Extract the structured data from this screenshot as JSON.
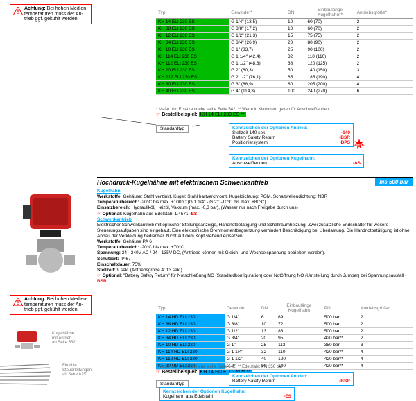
{
  "warn": {
    "title": "Achtung:",
    "text": "Bei hohen Medien-\ntemperaturen muss der An-\ntrieb ggf. gekühlt werden!"
  },
  "table1": {
    "headers": [
      "Typ",
      "Gewinde**",
      "DN",
      "Einbaulänge\nKugelhahn**",
      "Antriebsgröße*"
    ],
    "rows": [
      [
        "KH 14 ELI 230 ES",
        "G 1/4\" (13,5)",
        "10",
        "60 (70)",
        "2"
      ],
      [
        "KH 38 ELI 230 ES",
        "G 3/8\" (17,2)",
        "10",
        "60 (70)",
        "2"
      ],
      [
        "KH 12 ELI 230 ES",
        "G 1/2\" (21,3)",
        "15",
        "75 (75)",
        "2"
      ],
      [
        "KH 34 ELI 230 ES",
        "G 3/4\" (26,9)",
        "20",
        "80 (90)",
        "2"
      ],
      [
        "KH 10 ELI 230 ES",
        "G 1\" (33,7)",
        "25",
        "90 (100)",
        "2"
      ],
      [
        "KH 114 ELI 230 ES",
        "G 1 1/4\" (42,4)",
        "32",
        "110 (110)",
        "2"
      ],
      [
        "KH 112 ELI 230 ES",
        "G 1 1/2\" (48,3)",
        "38",
        "120 (125)",
        "2"
      ],
      [
        "KH 20 ELI 230 ES",
        "G 2\" (60,3)",
        "50",
        "140 (150)",
        "3"
      ],
      [
        "KH 212 ELI 230 ES",
        "G 2 1/2\" (76,1)",
        "65",
        "185 (190)",
        "4"
      ],
      [
        "KH 30 ELI 230 ES",
        "G 3\" (88,9)",
        "80",
        "205 (200)",
        "4"
      ],
      [
        "KH 40 ELI 230 ES",
        "G 4\" (114,3)",
        "100",
        "240 (270)",
        "6"
      ]
    ],
    "footnote": "* Maße und Ersatzantriebe siehe Seite 542, ** Werte in Klammern gelten für Anschweißenden",
    "bestell_label": "Bestellbeispiel:",
    "bestell_val": "KH 14 ELI 230 ES **",
    "std": "Standardtyp"
  },
  "opt1": {
    "title": "Kennzeichen der Optionen Antrieb:",
    "rows": [
      [
        "Stellzeit 140 sek.",
        "-140"
      ],
      [
        "Battery Safety Return",
        "-BSR"
      ],
      [
        "Positioniersystem",
        "-DPS"
      ]
    ],
    "burst": "NEU"
  },
  "opt1b": {
    "title": "Kennzeichen der Optionen Kugelhahn:",
    "rows": [
      [
        "Anschweißenden",
        "-AS"
      ]
    ]
  },
  "section": {
    "title": "Hochdruck-Kugelhähne mit elektrischem Schwenkantrieb",
    "bar": "bis 500 bar"
  },
  "desc": {
    "kugel": "Kugelhahn",
    "werk1": "Werkstoffe: Gehäuse: Stahl verzinkt, Kugel: Stahl hartverchromt, Kugeldichtung: POM, Schaltwellendichtung: NBR",
    "temp1": "Temperaturbereich: -20°C bis max. +100°C (G 1 1/4\" - G 2\": -10°C bis max. +80°C)",
    "eins": "Einsatzbereich: Hydrauliköl, Heizöl, Vakuum (max. -0,3 bar), (Wasser nur nach Freigabe durch uns)",
    "opt1": "Optional: Kugelhahn aus Edelstahl 1.4571 -ES",
    "schwenk": "Schwenkantrieb",
    "schwenktxt": "Elektrischer Schwenkantrieb mit optischer Stellungsanzeige, Handnotbetätigung und Schaltraumheizung. Zwei zusätzliche Endschalter für weitere Steuerungsaufgaben sind eingebaut. Eine elektronische Drehmomentbegrenzung verhindert Beschädigung bei Überlastung. Die Handnotbetätigung ist ohne Abbau der Verkleidung bedienbar. Nicht auf dem Kopf stehend einsetzen!",
    "werk2": "Werkstoffe: Gehäuse PA 6",
    "temp2": "Temperaturbereich: -20°C bis max. +70°C",
    "span": "Spannung: 24 - 240V AC / 24 - 135V DC, (Antriebe können mit Gleich- und Wechselspannung betrieben werden).",
    "schutz": "Schutzart: IP 67",
    "einsch": "Einschaltdauer: 75%",
    "stell": "Stellzeit: 9 sek. (Antriebsgröße 4: 13 sek.)",
    "opt2": "Optional: \"Battery Safety Return\" für Notschließung NC (Standardkonfiguration) oder Notöffnung NO (Umstellung durch Jumper) bei Spannungsausfall -BSR"
  },
  "table2": {
    "headers": [
      "Typ",
      "Gewinde",
      "DN",
      "Einbaulänge\nKugelhahn",
      "PN",
      "Antriebsgröße*"
    ],
    "rows": [
      [
        "KH 14 HD ELI 230",
        "G 1/4\"",
        "6",
        "69",
        "500 bar",
        "2"
      ],
      [
        "KH 38 HD ELI 230",
        "G 3/8\"",
        "10",
        "72",
        "500 bar",
        "2"
      ],
      [
        "KH 12 HD ELI 230",
        "G 1/2\"",
        "13",
        "83",
        "500 bar",
        "2"
      ],
      [
        "KH 34 HD ELI 230",
        "G 3/4\"",
        "20",
        "95",
        "420 bar**",
        "2"
      ],
      [
        "KH 10 HD ELI 230",
        "G 1\"",
        "25",
        "113",
        "350 bar",
        "3"
      ],
      [
        "KH 114 HD ELI 230",
        "G 1 1/4\"",
        "32",
        "110",
        "420 bar**",
        "4"
      ],
      [
        "KH 112 HD ELI 230",
        "G 1 1/2\"",
        "40",
        "120",
        "420 bar**",
        "4"
      ],
      [
        "KH 20 HD ELI 230",
        "G 2\"",
        "50",
        "140",
        "420 bar**",
        "4"
      ]
    ],
    "footnote": "* Maße und Ersatzantriebe siehe Seite 542, ** Edelstahl: PN 350 bar",
    "bestell_label": "Bestellbeispiel:",
    "bestell_val": "KH 14 HD ELI 230 ** **",
    "std": "Standardtyp"
  },
  "opt2": {
    "title": "Kennzeichen der Optionen Antrieb:",
    "rows": [
      [
        "Battery Safety Return",
        "-BSR"
      ]
    ]
  },
  "opt2b": {
    "title": "Kennzeichen der Optionen Kugelhahn:",
    "rows": [
      [
        "Kugelhahn aus Edelstahl",
        "-ES"
      ]
    ]
  },
  "labels": {
    "l1": "Kugelhähne\nmit Antrieb\nab Seite 532",
    "l2": "Flexible\nSteuerleitungen\nab Seite 825"
  },
  "colors": {
    "green": "#00cc00",
    "blue": "#00aaff",
    "red": "#ff0000"
  }
}
